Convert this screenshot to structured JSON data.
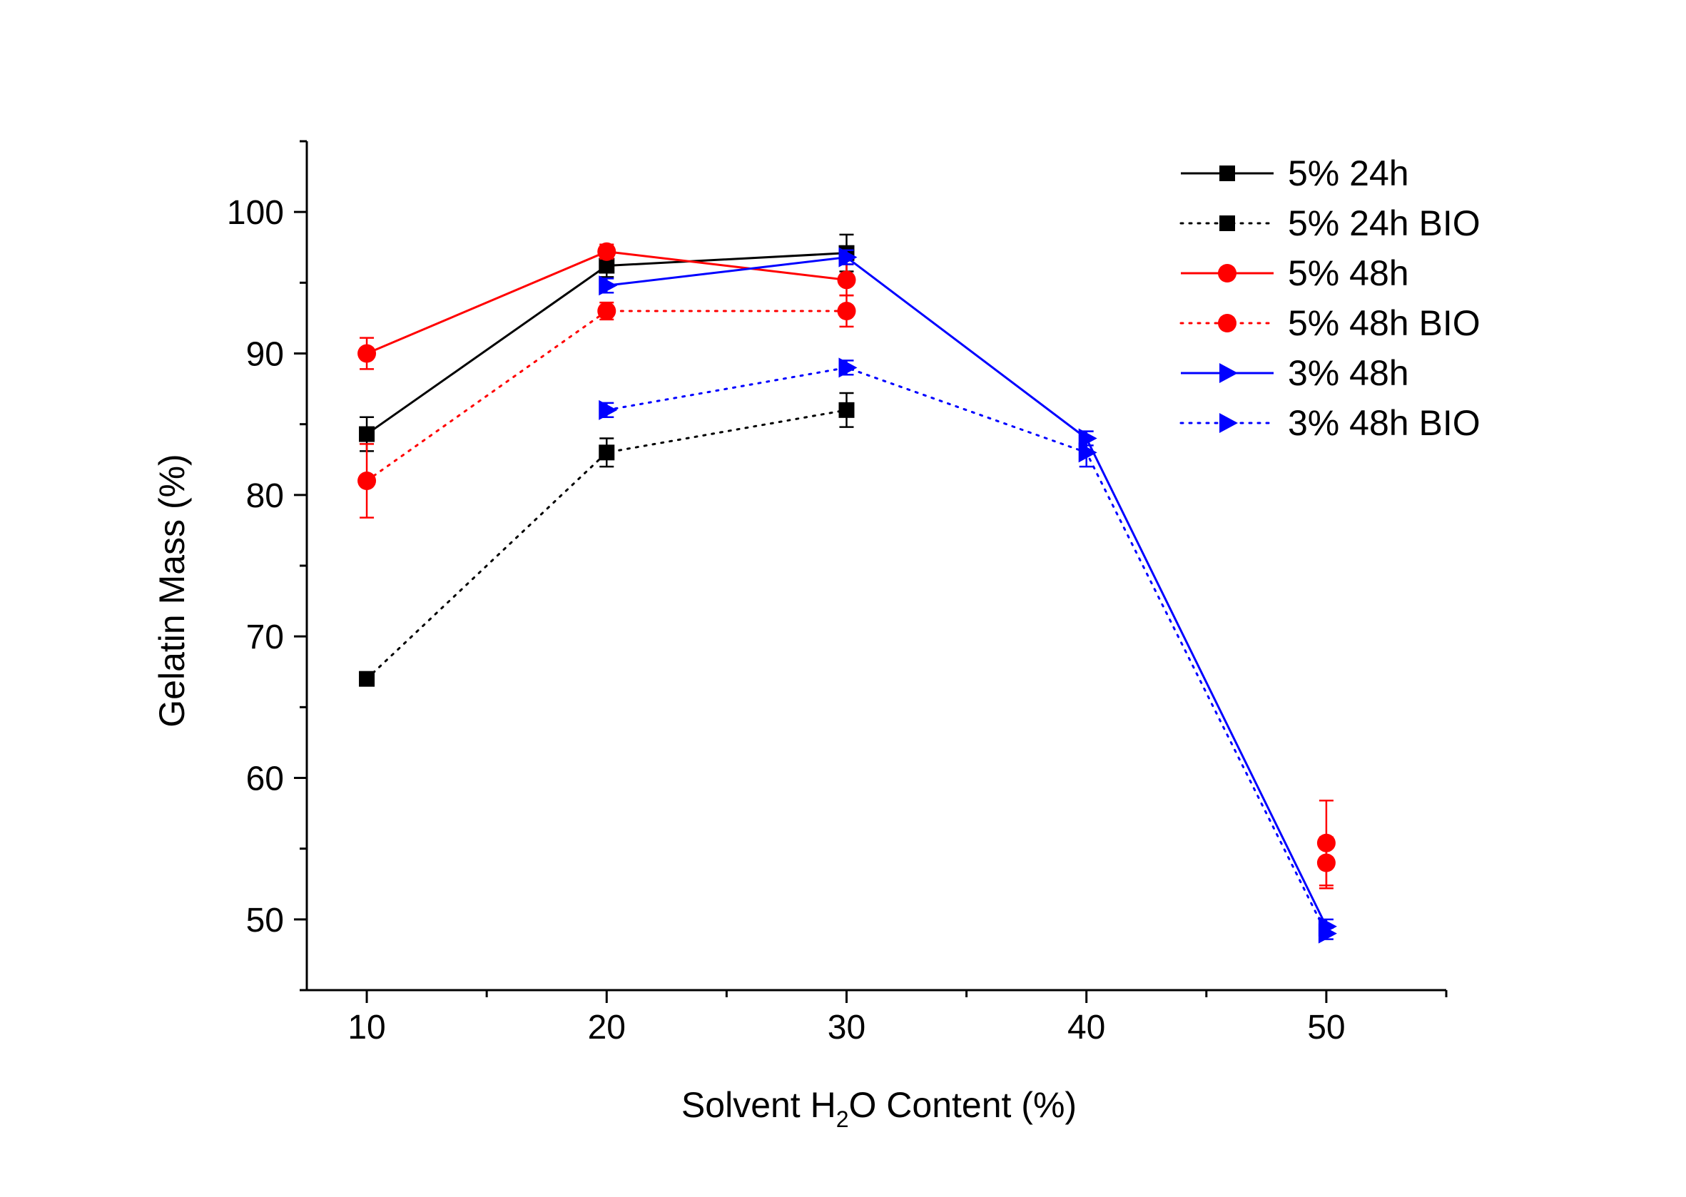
{
  "chart_data": {
    "type": "line",
    "title": "",
    "xlabel": {
      "prefix": "Solvent H",
      "subscript": "2",
      "suffix": "O Content (%)"
    },
    "ylabel": "Gelatin Mass (%)",
    "xlim": [
      7.5,
      55
    ],
    "ylim": [
      45,
      105
    ],
    "xticks": [
      10,
      20,
      30,
      40,
      50
    ],
    "xtick_labels": [
      "10",
      "20",
      "30",
      "40",
      "50"
    ],
    "yticks": [
      50,
      60,
      70,
      80,
      90,
      100
    ],
    "ytick_labels": [
      "50",
      "60",
      "70",
      "80",
      "90",
      "100"
    ],
    "grid": false,
    "legend_position": "top-right",
    "series": [
      {
        "name": "5% 24h",
        "color": "#000000",
        "line_style": "solid",
        "marker": "square",
        "x": [
          10,
          20,
          30
        ],
        "y": [
          84.3,
          96.2,
          97.1
        ],
        "err": [
          1.2,
          0.8,
          1.3
        ]
      },
      {
        "name": "5% 24h BIO",
        "color": "#000000",
        "line_style": "dotted",
        "marker": "square",
        "x": [
          10,
          20,
          30
        ],
        "y": [
          67,
          83,
          86
        ],
        "err": [
          0.3,
          1.0,
          1.2
        ]
      },
      {
        "name": "5% 48h",
        "color": "#ff0000",
        "line_style": "solid",
        "marker": "circle",
        "x": [
          10,
          20,
          30
        ],
        "y": [
          90,
          97.2,
          95.2
        ],
        "err": [
          1.1,
          0.5,
          1.1
        ]
      },
      {
        "name": "5% 48h BIO",
        "color": "#ff0000",
        "line_style": "dotted",
        "marker": "circle",
        "x": [
          10,
          20,
          30
        ],
        "y": [
          81,
          93,
          93
        ],
        "err": [
          2.6,
          0.6,
          1.1
        ]
      },
      {
        "name": "3% 48h",
        "color": "#0000ff",
        "line_style": "solid",
        "marker": "triangle-right",
        "x": [
          20,
          30,
          40,
          50
        ],
        "y": [
          94.8,
          96.8,
          84,
          49.5
        ],
        "err": [
          0.5,
          0.5,
          0.5,
          0.5
        ]
      },
      {
        "name": "3% 48h BIO",
        "color": "#0000ff",
        "line_style": "dotted",
        "marker": "triangle-right",
        "x": [
          20,
          30,
          40,
          50
        ],
        "y": [
          86,
          89,
          83,
          49
        ],
        "err": [
          0.5,
          0.5,
          1.0,
          0.4
        ]
      }
    ],
    "isolated_points": [
      {
        "series": "5% 48h",
        "x": 50,
        "y": 54,
        "err": 1.8,
        "color": "#ff0000",
        "marker": "circle"
      },
      {
        "series": "5% 48h BIO",
        "x": 50,
        "y": 55.4,
        "err": 3.0,
        "color": "#ff0000",
        "marker": "circle"
      }
    ]
  }
}
